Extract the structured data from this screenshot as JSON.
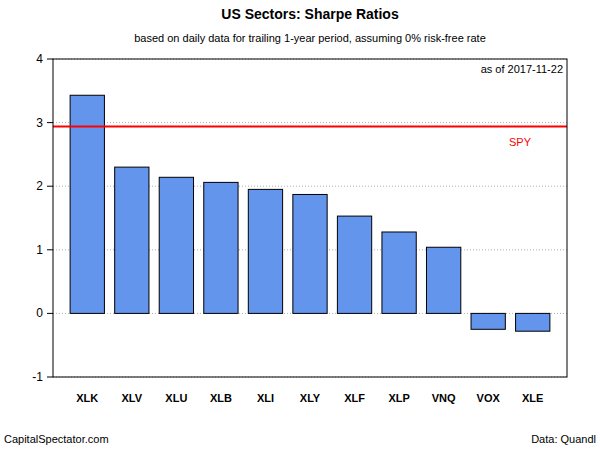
{
  "chart_data": {
    "type": "bar",
    "title": "US Sectors: Sharpe Ratios",
    "subtitle": "based on daily data for trailing 1-year period, assuming 0% risk-free rate",
    "annotations": [
      "as of 2017-11-22"
    ],
    "credit": "CapitalSpectator.com",
    "source": "Data: Quandl",
    "categories": [
      "XLK",
      "XLV",
      "XLU",
      "XLB",
      "XLI",
      "XLY",
      "XLF",
      "XLP",
      "VNQ",
      "VOX",
      "XLE"
    ],
    "values": [
      3.43,
      2.3,
      2.14,
      2.06,
      1.95,
      1.87,
      1.53,
      1.28,
      1.04,
      -0.25,
      -0.28
    ],
    "color": "#6495ed",
    "reference_lines": [
      {
        "name": "SPY",
        "value": 2.94,
        "color": "#ff0000"
      }
    ],
    "ylim": [
      -1,
      4
    ],
    "yticks": [
      -1,
      0,
      1,
      2,
      3,
      4
    ],
    "grid": true
  }
}
